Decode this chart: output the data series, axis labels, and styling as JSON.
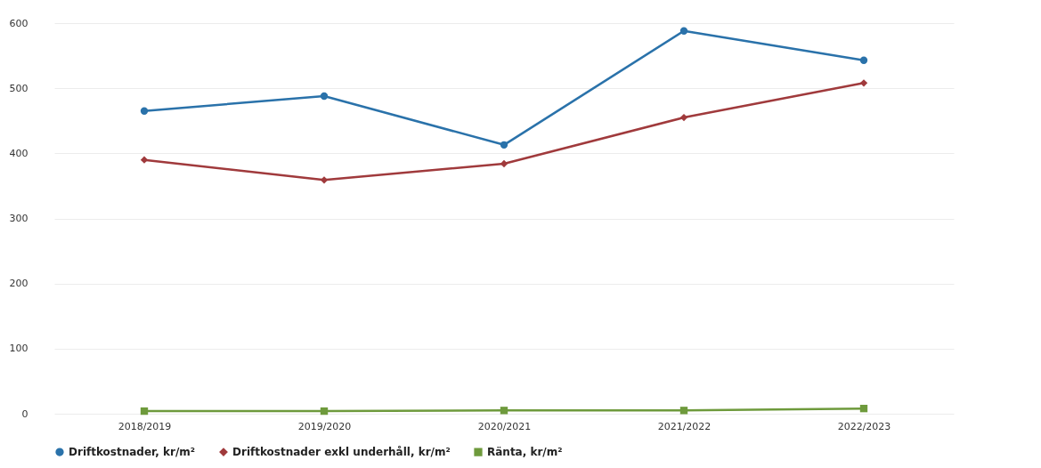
{
  "chart_data": {
    "type": "line",
    "categories": [
      "2018/2019",
      "2019/2020",
      "2020/2021",
      "2021/2022",
      "2022/2023"
    ],
    "series": [
      {
        "name": "Driftkostnader, kr/m²",
        "color": "#2a72aa",
        "marker": "circle",
        "values": [
          465,
          488,
          413,
          588,
          543
        ]
      },
      {
        "name": "Driftkostnader exkl underhåll, kr/m²",
        "color": "#a03a3c",
        "marker": "diamond",
        "values": [
          390,
          359,
          384,
          455,
          508
        ]
      },
      {
        "name": "Ränta, kr/m²",
        "color": "#6e9a3c",
        "marker": "square",
        "values": [
          4,
          4,
          5,
          5,
          8
        ]
      }
    ],
    "ylim": [
      0,
      600
    ],
    "yticks": [
      0,
      100,
      200,
      300,
      400,
      500,
      600
    ],
    "grid": "y",
    "legend": "bottom",
    "line_style": "solid"
  }
}
